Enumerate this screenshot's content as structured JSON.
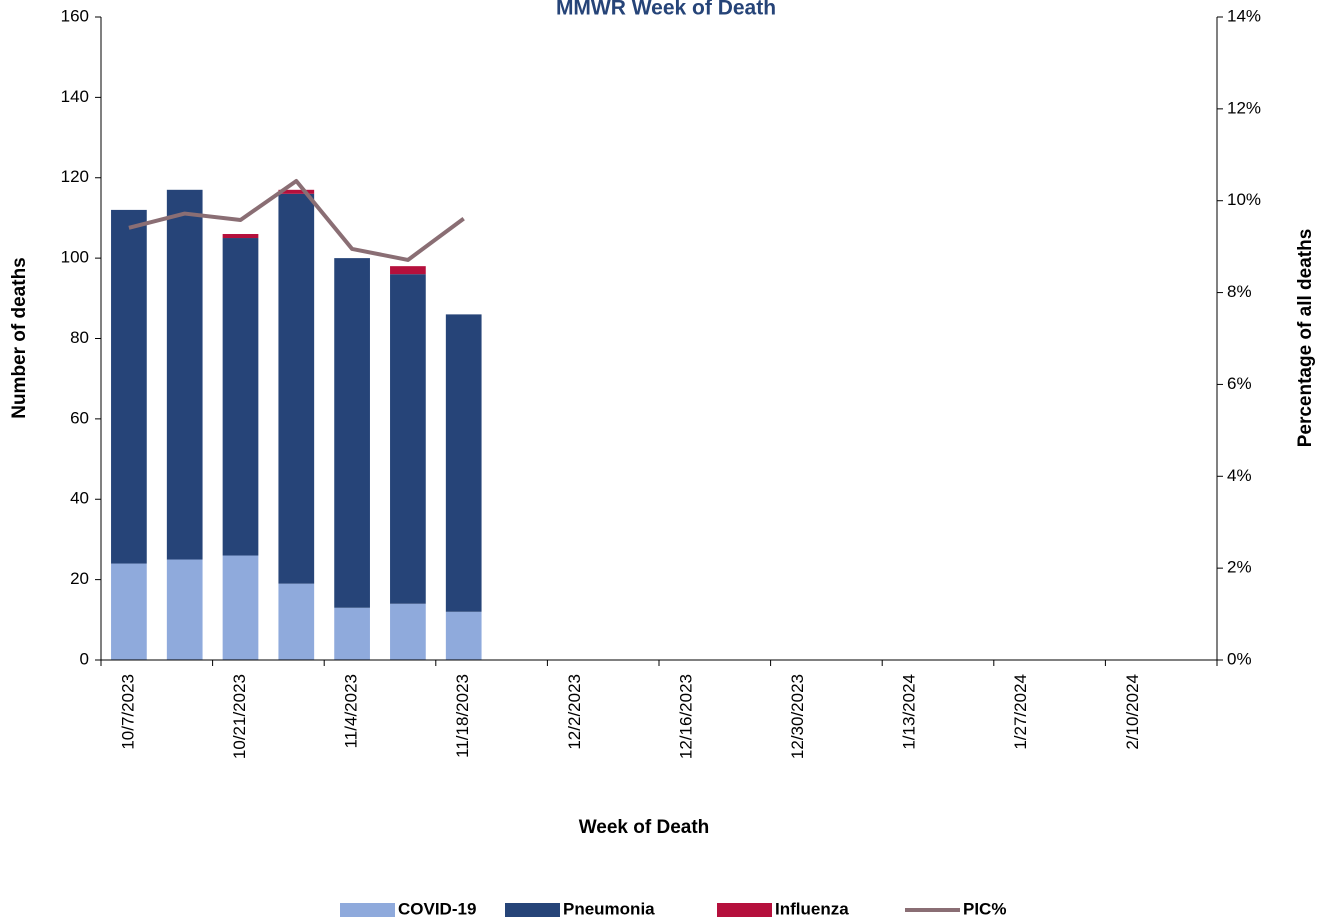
{
  "chart_data": {
    "type": "bar",
    "stacked": true,
    "title": "MMWR Week of Death",
    "x_label": "Week of Death",
    "y_label": "Number of deaths",
    "y2_label": "Percentage of all deaths",
    "categories": [
      "10/7/2023",
      null,
      "10/21/2023",
      null,
      "11/4/2023",
      null,
      "11/18/2023",
      null,
      "12/2/2023",
      null,
      "12/16/2023",
      null,
      "12/30/2023",
      null,
      "1/13/2024",
      null,
      "1/27/2024",
      null,
      "2/10/2024",
      null
    ],
    "series": [
      {
        "name": "COVID-19",
        "type": "bar",
        "color": "#8faadc",
        "values": [
          24,
          25,
          26,
          19,
          13,
          14,
          12,
          null,
          null,
          null,
          null,
          null,
          null,
          null,
          null,
          null,
          null,
          null,
          null,
          null
        ]
      },
      {
        "name": "Pneumonia",
        "type": "bar",
        "color": "#264478",
        "values": [
          88,
          92,
          79,
          97,
          87,
          82,
          74,
          null,
          null,
          null,
          null,
          null,
          null,
          null,
          null,
          null,
          null,
          null,
          null,
          null
        ]
      },
      {
        "name": "Influenza",
        "type": "bar",
        "color": "#b5103c",
        "values": [
          0,
          0,
          1,
          1,
          0,
          2,
          0,
          null,
          null,
          null,
          null,
          null,
          null,
          null,
          null,
          null,
          null,
          null,
          null,
          null
        ]
      },
      {
        "name": "PIC%",
        "type": "line",
        "axis": "y2",
        "color": "#8a6e74",
        "values": [
          9.41,
          9.72,
          9.58,
          10.43,
          8.95,
          8.71,
          9.61,
          null,
          null,
          null,
          null,
          null,
          null,
          null,
          null,
          null,
          null,
          null,
          null,
          null
        ]
      }
    ],
    "ylim": [
      0,
      160
    ],
    "yticks": [
      0,
      20,
      40,
      60,
      80,
      100,
      120,
      140,
      160
    ],
    "y2lim": [
      0,
      14
    ],
    "y2ticks": [
      {
        "value": 0,
        "label": "0%"
      },
      {
        "value": 2,
        "label": "2%"
      },
      {
        "value": 4,
        "label": "4%"
      },
      {
        "value": 6,
        "label": "6%"
      },
      {
        "value": 8,
        "label": "8%"
      },
      {
        "value": 10,
        "label": "10%"
      },
      {
        "value": 12,
        "label": "12%"
      },
      {
        "value": 14,
        "label": "14%"
      }
    ],
    "grid": false,
    "legend": "bottom"
  }
}
